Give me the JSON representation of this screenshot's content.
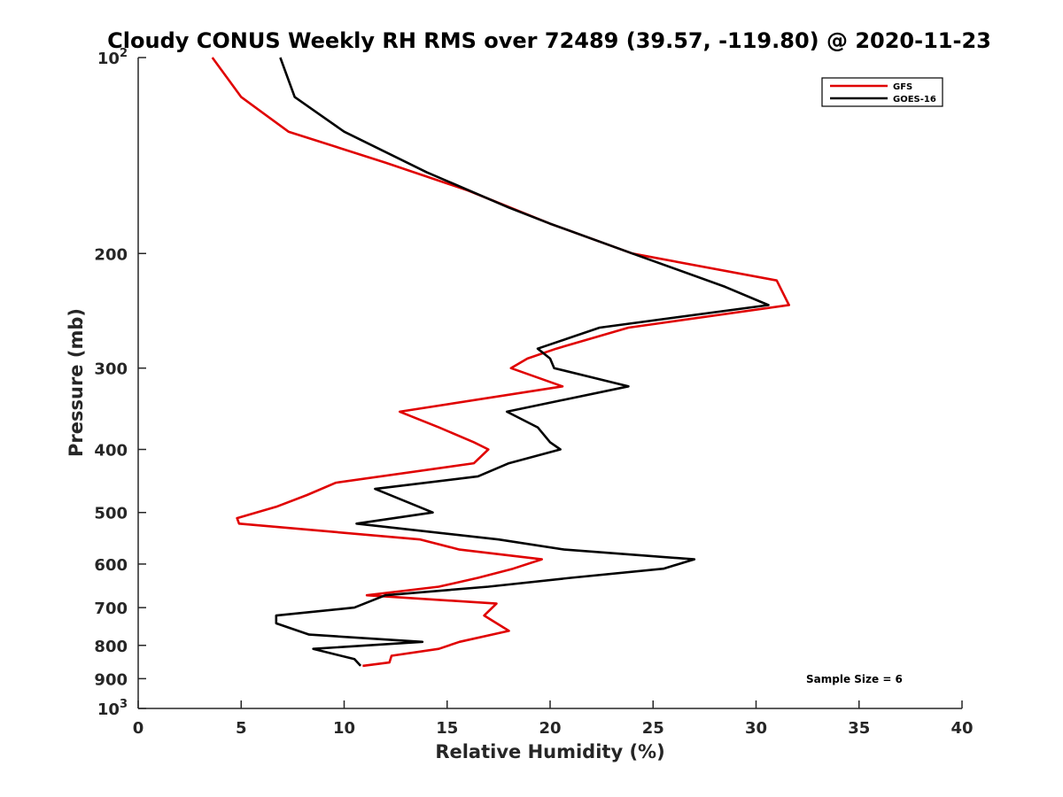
{
  "chart_data": {
    "type": "line",
    "title": "Cloudy CONUS Weekly RH RMS over 72489 (39.57, -119.80) @ 2020-11-23",
    "xlabel": "Relative Humidity (%)",
    "ylabel": "Pressure (mb)",
    "xlim": [
      0,
      40
    ],
    "ylim": [
      100,
      1000
    ],
    "y_scale": "log",
    "y_reversed": true,
    "grid": false,
    "legend_placement": "top-right",
    "x_ticks": [
      "0",
      "5",
      "10",
      "15",
      "20",
      "25",
      "30",
      "35",
      "40"
    ],
    "y_ticks": [
      {
        "value": 100,
        "base": "10",
        "exp": "2"
      },
      {
        "value": 200,
        "label": "200"
      },
      {
        "value": 300,
        "label": "300"
      },
      {
        "value": 400,
        "label": "400"
      },
      {
        "value": 500,
        "label": "500"
      },
      {
        "value": 600,
        "label": "600"
      },
      {
        "value": 700,
        "label": "700"
      },
      {
        "value": 800,
        "label": "800"
      },
      {
        "value": 900,
        "label": "900"
      },
      {
        "value": 1000,
        "base": "10",
        "exp": "3"
      }
    ],
    "series": [
      {
        "name": "GFS",
        "color": "#e00000",
        "points": [
          [
            3.6,
            100
          ],
          [
            5.0,
            115
          ],
          [
            7.3,
            130
          ],
          [
            12.0,
            145
          ],
          [
            16.0,
            160
          ],
          [
            20.0,
            180
          ],
          [
            24.0,
            200
          ],
          [
            31.0,
            220
          ],
          [
            31.6,
            240
          ],
          [
            23.8,
            260
          ],
          [
            20.3,
            280
          ],
          [
            18.9,
            290
          ],
          [
            18.1,
            300
          ],
          [
            20.6,
            320
          ],
          [
            12.7,
            350
          ],
          [
            14.6,
            370
          ],
          [
            16.3,
            390
          ],
          [
            17.0,
            400
          ],
          [
            16.3,
            420
          ],
          [
            9.6,
            450
          ],
          [
            8.2,
            470
          ],
          [
            6.7,
            490
          ],
          [
            4.8,
            510
          ],
          [
            4.9,
            520
          ],
          [
            13.7,
            550
          ],
          [
            15.6,
            570
          ],
          [
            19.6,
            590
          ],
          [
            18.2,
            610
          ],
          [
            16.5,
            630
          ],
          [
            14.6,
            650
          ],
          [
            11.1,
            670
          ],
          [
            17.4,
            690
          ],
          [
            16.8,
            720
          ],
          [
            18.0,
            760
          ],
          [
            15.6,
            790
          ],
          [
            14.6,
            810
          ],
          [
            12.3,
            830
          ],
          [
            12.2,
            850
          ],
          [
            10.9,
            860
          ]
        ]
      },
      {
        "name": "GOES-16",
        "color": "#000000",
        "points": [
          [
            6.9,
            100
          ],
          [
            7.6,
            115
          ],
          [
            10.0,
            130
          ],
          [
            14.0,
            150
          ],
          [
            18.0,
            170
          ],
          [
            20.0,
            180
          ],
          [
            24.0,
            200
          ],
          [
            28.5,
            225
          ],
          [
            30.6,
            240
          ],
          [
            22.4,
            260
          ],
          [
            19.4,
            280
          ],
          [
            20.0,
            290
          ],
          [
            20.2,
            300
          ],
          [
            23.8,
            320
          ],
          [
            17.9,
            350
          ],
          [
            19.4,
            370
          ],
          [
            20.0,
            390
          ],
          [
            20.5,
            400
          ],
          [
            18.0,
            420
          ],
          [
            16.5,
            440
          ],
          [
            11.5,
            460
          ],
          [
            14.3,
            500
          ],
          [
            10.6,
            520
          ],
          [
            17.5,
            550
          ],
          [
            20.7,
            570
          ],
          [
            27.0,
            590
          ],
          [
            25.5,
            610
          ],
          [
            21.0,
            630
          ],
          [
            17.0,
            650
          ],
          [
            12.0,
            670
          ],
          [
            10.5,
            700
          ],
          [
            6.7,
            720
          ],
          [
            6.7,
            740
          ],
          [
            8.3,
            770
          ],
          [
            13.8,
            790
          ],
          [
            8.5,
            810
          ],
          [
            10.5,
            840
          ],
          [
            10.8,
            860
          ]
        ]
      }
    ],
    "annotation": "Sample Size = 6"
  }
}
